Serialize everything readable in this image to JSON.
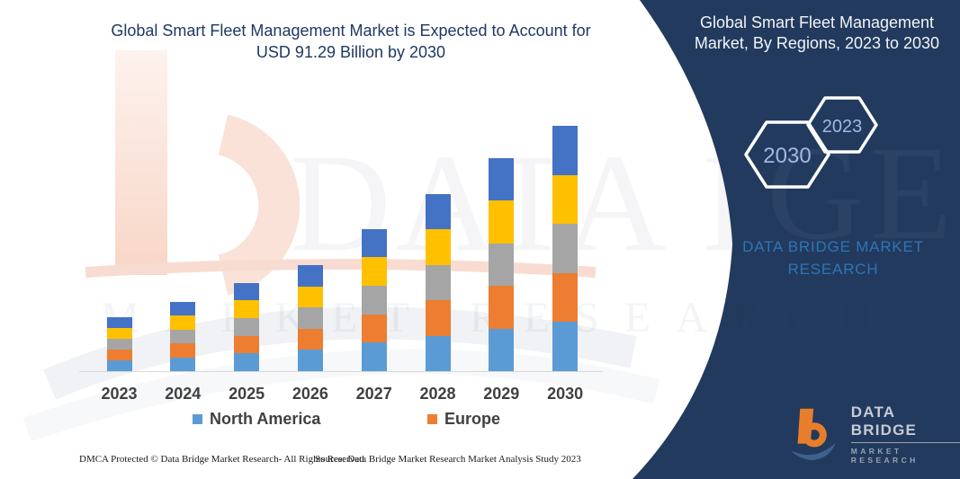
{
  "header": {
    "left_title_line1": "Global Smart Fleet Management Market is Expected to Account for",
    "left_title_line2": "USD 91.29  Billion by 2030",
    "right_title_line1": "Global Smart Fleet Management",
    "right_title_line2": "Market, By Regions, 2023 to 2030"
  },
  "panel": {
    "hexagons": [
      {
        "label": "2030"
      },
      {
        "label": "2023"
      }
    ],
    "brand_caption_line1": "DATA BRIDGE MARKET",
    "brand_caption_line2": "RESEARCH"
  },
  "chart_data": {
    "type": "bar",
    "stacked": true,
    "unit": "USD Billion",
    "categories": [
      "2023",
      "2024",
      "2025",
      "2026",
      "2027",
      "2028",
      "2029",
      "2030"
    ],
    "series": [
      {
        "name": "North America",
        "color": "#5B9BD5",
        "values": [
          4.0,
          5.2,
          6.6,
          7.9,
          10.6,
          13.2,
          15.9,
          18.26
        ]
      },
      {
        "name": "Europe",
        "color": "#ED7D31",
        "values": [
          4.0,
          5.2,
          6.6,
          7.9,
          10.6,
          13.2,
          15.9,
          18.26
        ]
      },
      {
        "name": "unlabeled-gray",
        "color": "#A5A5A5",
        "values": [
          4.0,
          5.2,
          6.6,
          7.9,
          10.6,
          13.2,
          15.9,
          18.26
        ]
      },
      {
        "name": "unlabeled-yellow",
        "color": "#FFC000",
        "values": [
          4.0,
          5.2,
          6.6,
          7.9,
          10.6,
          13.2,
          15.9,
          18.26
        ]
      },
      {
        "name": "unlabeled-dark-blue",
        "color": "#4472C4",
        "values": [
          4.0,
          5.2,
          6.6,
          7.9,
          10.6,
          13.2,
          15.9,
          18.26
        ]
      }
    ],
    "totals_estimated": [
      20.0,
      26.0,
      33.0,
      39.5,
      53.0,
      66.0,
      79.5,
      91.29
    ],
    "stated_value_2030": 91.29,
    "legend_entries_visible": [
      "North America",
      "Europe"
    ],
    "legend_position": "bottom",
    "y_axis": "hidden",
    "gridlines": false
  },
  "legend": [
    {
      "label": "North America",
      "color": "#5B9BD5"
    },
    {
      "label": "Europe",
      "color": "#ED7D31"
    }
  ],
  "watermark": {
    "big_text": "DATA BRIDGE",
    "row_text": "MARKET RESEARCH",
    "ghost_text": "GE"
  },
  "logo": {
    "name": "DATA BRIDGE",
    "subtitle": "MARKET RESEARCH"
  },
  "footer": {
    "dmca": "DMCA Protected © Data Bridge Market Research-  All Rights Reserved.",
    "source": "Source: Data Bridge Market Research  Market Analysis Study 2023"
  },
  "colors": {
    "navy_panel": "#223A5E",
    "title_text": "#1F3864",
    "panel_caption_blue": "#2E75B6",
    "tick_label": "#404040",
    "axis_line": "#D8D8D8",
    "hex_label": "#A3B8DC",
    "logo_orange": "#E87E2B",
    "logo_blue": "#40618F"
  }
}
